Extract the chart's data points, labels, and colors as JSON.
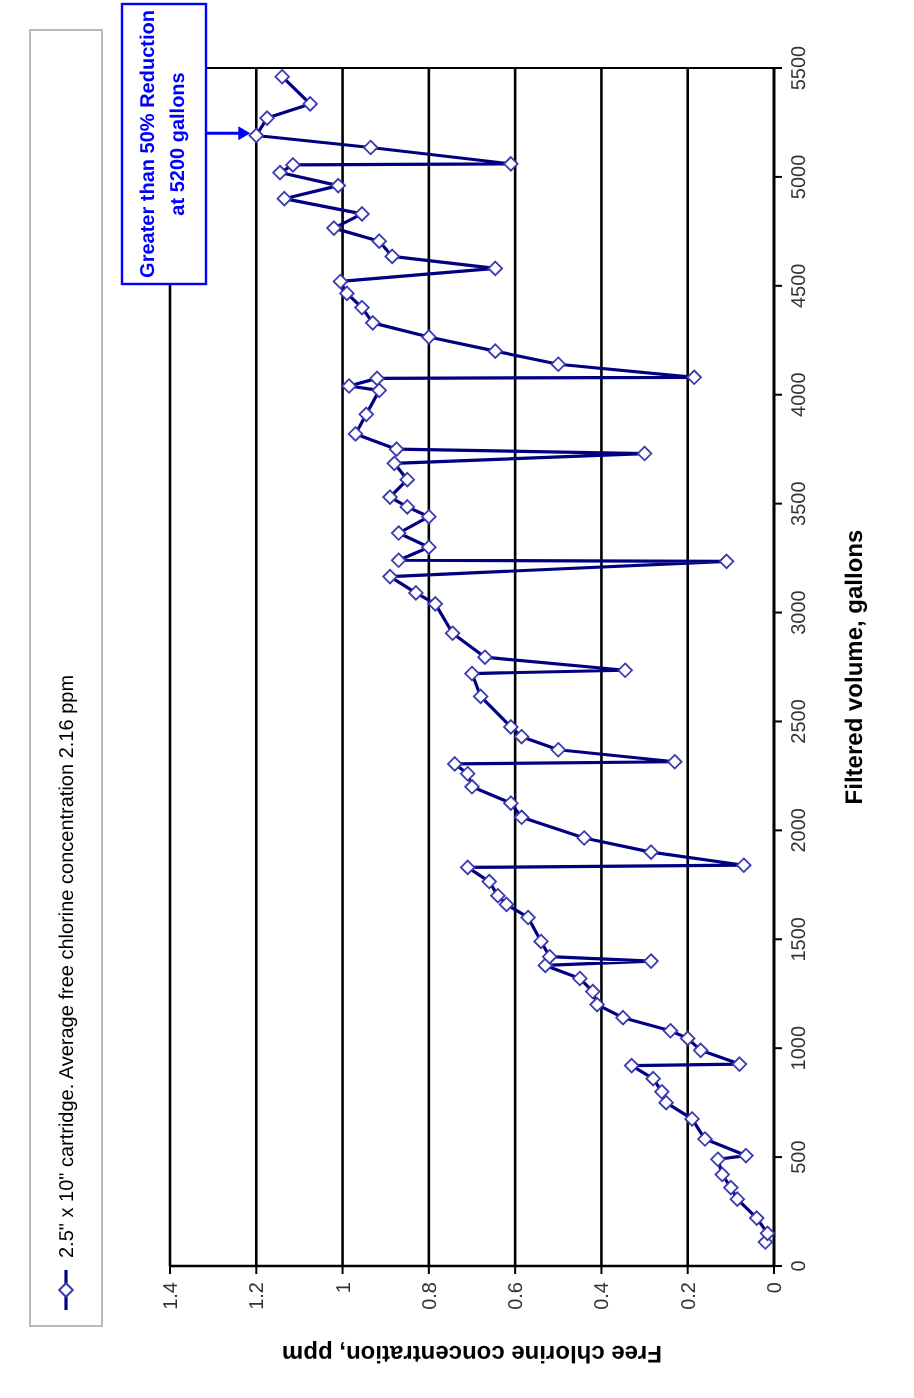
{
  "chart_data": {
    "type": "line",
    "xlabel": "Free chlorine concentration, ppm",
    "ylabel": "Filtered volume, gallons",
    "xlim": [
      1.4,
      0
    ],
    "xticks": [
      0,
      0.2,
      0.4,
      0.6,
      0.8,
      1,
      1.2,
      1.4
    ],
    "ylim": [
      0,
      5500
    ],
    "yticks": [
      0,
      500,
      1000,
      1500,
      2000,
      2500,
      3000,
      3500,
      4000,
      4500,
      5000,
      5500
    ],
    "grid": "x",
    "legend": "left",
    "marker": "diamond",
    "line_style": "solid",
    "annotations": [
      {
        "text": "Greater than 50% Reduction\nat 5200 gallons",
        "x": 1.2,
        "y": 5200
      }
    ],
    "series": [
      {
        "name": "2.5\" x 10\" cartridge. Average free chlorine concentration 2.16 ppm",
        "color": "#000080",
        "x": [
          0.02,
          0.015,
          0.04,
          0.085,
          0.1,
          0.12,
          0.13,
          0.065,
          0.16,
          0.19,
          0.25,
          0.26,
          0.28,
          0.33,
          0.08,
          0.17,
          0.2,
          0.24,
          0.35,
          0.41,
          0.42,
          0.45,
          0.53,
          0.285,
          0.52,
          0.54,
          0.57,
          0.62,
          0.64,
          0.66,
          0.71,
          0.07,
          0.285,
          0.44,
          0.585,
          0.61,
          0.7,
          0.71,
          0.74,
          0.23,
          0.5,
          0.585,
          0.61,
          0.68,
          0.7,
          0.345,
          0.67,
          0.745,
          0.785,
          0.83,
          0.89,
          0.11,
          0.87,
          0.8,
          0.87,
          0.8,
          0.85,
          0.89,
          0.85,
          0.88,
          0.3,
          0.875,
          0.97,
          0.945,
          0.915,
          0.985,
          0.92,
          0.185,
          0.5,
          0.646,
          0.8,
          0.93,
          0.955,
          0.99,
          1.005,
          0.646,
          0.885,
          0.915,
          1.02,
          0.955,
          1.135,
          1.01,
          1.145,
          1.115,
          0.61,
          0.935,
          1.2,
          1.175,
          1.075,
          1.14
        ],
        "values": [
          110,
          150,
          220,
          307,
          360,
          420,
          490,
          507,
          583,
          675,
          750,
          800,
          860,
          920,
          927,
          990,
          1045,
          1080,
          1140,
          1200,
          1260,
          1320,
          1380,
          1400,
          1420,
          1490,
          1600,
          1660,
          1700,
          1765,
          1830,
          1840,
          1900,
          1965,
          2060,
          2125,
          2200,
          2260,
          2305,
          2315,
          2370,
          2430,
          2475,
          2615,
          2720,
          2735,
          2795,
          2905,
          3040,
          3090,
          3165,
          3235,
          3240,
          3300,
          3365,
          3440,
          3485,
          3530,
          3610,
          3685,
          3730,
          3750,
          3820,
          3910,
          4020,
          4040,
          4075,
          4080,
          4140,
          4200,
          4265,
          4330,
          4400,
          4465,
          4520,
          4580,
          4635,
          4705,
          4765,
          4830,
          4900,
          4960,
          5020,
          5055,
          5060,
          5135,
          5190,
          5270,
          5335,
          5460
        ]
      }
    ]
  }
}
